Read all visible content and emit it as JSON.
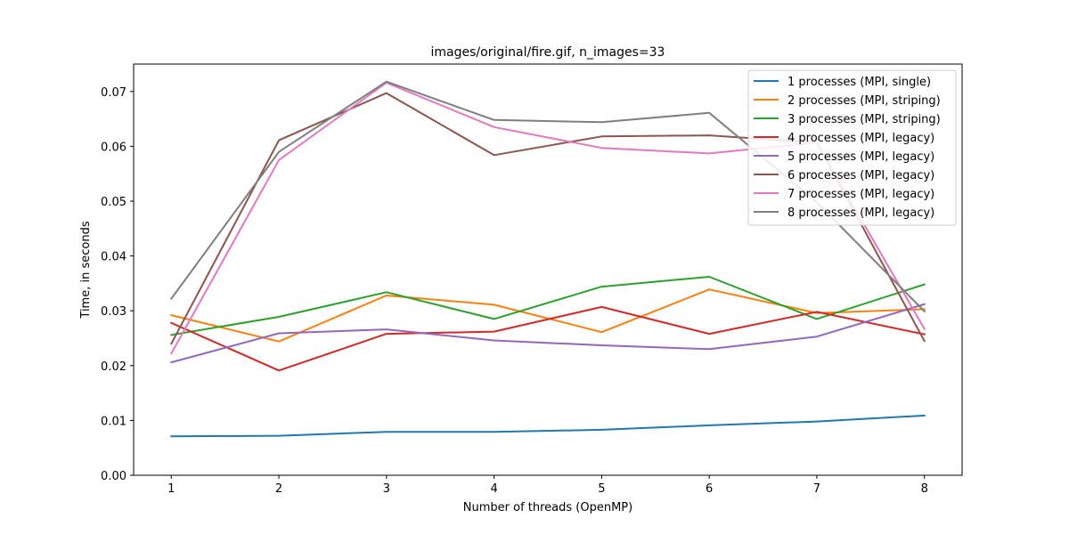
{
  "chart_data": {
    "type": "line",
    "title": "images/original/fire.gif, n_images=33",
    "xlabel": "Number of threads (OpenMP)",
    "ylabel": "Time, in seconds",
    "x": [
      1,
      2,
      3,
      4,
      5,
      6,
      7,
      8
    ],
    "xlim": [
      0.65,
      8.35
    ],
    "ylim": [
      0.0,
      0.075
    ],
    "yticks": [
      "0.00",
      "0.01",
      "0.02",
      "0.03",
      "0.04",
      "0.05",
      "0.06",
      "0.07"
    ],
    "xticks": [
      "1",
      "2",
      "3",
      "4",
      "5",
      "6",
      "7",
      "8"
    ],
    "grid": false,
    "legend_position": "top-right",
    "series": [
      {
        "name": "1 processes (MPI, single)",
        "color": "#1f77b4",
        "values": [
          0.0071,
          0.0072,
          0.0079,
          0.0079,
          0.0083,
          0.0091,
          0.0098,
          0.0109
        ]
      },
      {
        "name": "2 processes (MPI, striping)",
        "color": "#ff7f0e",
        "values": [
          0.0292,
          0.0244,
          0.0328,
          0.0311,
          0.0261,
          0.0339,
          0.0296,
          0.0303
        ]
      },
      {
        "name": "3 processes (MPI, striping)",
        "color": "#2ca02c",
        "values": [
          0.0256,
          0.0289,
          0.0334,
          0.0285,
          0.0344,
          0.0362,
          0.0285,
          0.0348
        ]
      },
      {
        "name": "4 processes (MPI, legacy)",
        "color": "#d62728",
        "values": [
          0.0278,
          0.0191,
          0.0258,
          0.0262,
          0.0307,
          0.0258,
          0.0298,
          0.0257
        ]
      },
      {
        "name": "5 processes (MPI, legacy)",
        "color": "#9467bd",
        "values": [
          0.0206,
          0.0259,
          0.0266,
          0.0246,
          0.0237,
          0.023,
          0.0253,
          0.0312
        ]
      },
      {
        "name": "6 processes (MPI, legacy)",
        "color": "#8c564b",
        "values": [
          0.024,
          0.0611,
          0.0697,
          0.0584,
          0.0618,
          0.062,
          0.0607,
          0.0245
        ]
      },
      {
        "name": "7 processes (MPI, legacy)",
        "color": "#e377c2",
        "values": [
          0.0222,
          0.0575,
          0.0716,
          0.0635,
          0.0597,
          0.0587,
          0.0607,
          0.0267
        ]
      },
      {
        "name": "8 processes (MPI, legacy)",
        "color": "#7f7f7f",
        "values": [
          0.0322,
          0.059,
          0.0718,
          0.0648,
          0.0644,
          0.0661,
          0.0498,
          0.0299
        ]
      }
    ]
  }
}
